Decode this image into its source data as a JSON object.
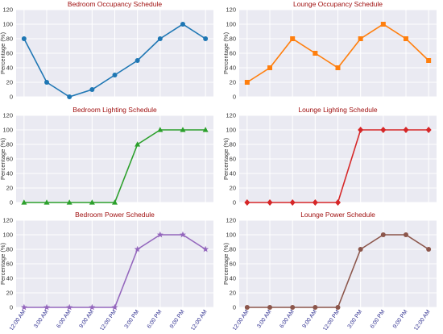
{
  "chart_data": [
    {
      "type": "line",
      "title": "Bedroom Occupancy Schedule",
      "xlabel": "",
      "ylabel": "Percentage (%)",
      "ylim": [
        0,
        120
      ],
      "yticks": [
        0,
        20,
        40,
        60,
        80,
        100,
        120
      ],
      "categories": [
        "12:00 AM",
        "3:00 AM",
        "6:00 AM",
        "9:00 AM",
        "12:00 PM",
        "3:00 PM",
        "6:00 PM",
        "9:00 PM",
        "12:00 AM"
      ],
      "show_x_tick_labels": false,
      "grid": true,
      "marker": "circle",
      "color": "#1f77b4",
      "values": [
        80,
        20,
        0,
        10,
        30,
        50,
        80,
        100,
        80
      ]
    },
    {
      "type": "line",
      "title": "Lounge Occupancy Schedule",
      "xlabel": "",
      "ylabel": "Percentage (%)",
      "ylim": [
        0,
        120
      ],
      "yticks": [
        0,
        20,
        40,
        60,
        80,
        100,
        120
      ],
      "categories": [
        "12:00 AM",
        "3:00 AM",
        "6:00 AM",
        "9:00 AM",
        "12:00 PM",
        "3:00 PM",
        "6:00 PM",
        "9:00 PM",
        "12:00 AM"
      ],
      "show_x_tick_labels": false,
      "grid": true,
      "marker": "square",
      "color": "#ff7f0e",
      "values": [
        20,
        40,
        80,
        60,
        40,
        80,
        100,
        80,
        50
      ]
    },
    {
      "type": "line",
      "title": "Bedroom Lighting Schedule",
      "xlabel": "",
      "ylabel": "Percentage (%)",
      "ylim": [
        0,
        120
      ],
      "yticks": [
        0,
        20,
        40,
        60,
        80,
        100,
        120
      ],
      "categories": [
        "12:00 AM",
        "3:00 AM",
        "6:00 AM",
        "9:00 AM",
        "12:00 PM",
        "3:00 PM",
        "6:00 PM",
        "9:00 PM",
        "12:00 AM"
      ],
      "show_x_tick_labels": false,
      "grid": true,
      "marker": "triangle",
      "color": "#2ca02c",
      "values": [
        0,
        0,
        0,
        0,
        0,
        80,
        100,
        100,
        100
      ]
    },
    {
      "type": "line",
      "title": "Lounge Lighting Schedule",
      "xlabel": "",
      "ylabel": "Percentage (%)",
      "ylim": [
        0,
        120
      ],
      "yticks": [
        0,
        20,
        40,
        60,
        80,
        100,
        120
      ],
      "categories": [
        "12:00 AM",
        "3:00 AM",
        "6:00 AM",
        "9:00 AM",
        "12:00 PM",
        "3:00 PM",
        "6:00 PM",
        "9:00 PM",
        "12:00 AM"
      ],
      "show_x_tick_labels": false,
      "grid": true,
      "marker": "diamond",
      "color": "#d62728",
      "values": [
        0,
        0,
        0,
        0,
        0,
        100,
        100,
        100,
        100
      ]
    },
    {
      "type": "line",
      "title": "Bedroom Power Schedule",
      "xlabel": "",
      "ylabel": "Percentage (%)",
      "ylim": [
        0,
        120
      ],
      "yticks": [
        0,
        20,
        40,
        60,
        80,
        100,
        120
      ],
      "categories": [
        "12:00 AM",
        "3:00 AM",
        "6:00 AM",
        "9:00 AM",
        "12:00 PM",
        "3:00 PM",
        "6:00 PM",
        "9:00 PM",
        "12:00 AM"
      ],
      "show_x_tick_labels": true,
      "grid": true,
      "marker": "star",
      "color": "#9467bd",
      "values": [
        0,
        0,
        0,
        0,
        0,
        80,
        100,
        100,
        80
      ]
    },
    {
      "type": "line",
      "title": "Lounge Power Schedule",
      "xlabel": "",
      "ylabel": "Percentage (%)",
      "ylim": [
        0,
        120
      ],
      "yticks": [
        0,
        20,
        40,
        60,
        80,
        100,
        120
      ],
      "categories": [
        "12:00 AM",
        "3:00 AM",
        "6:00 AM",
        "9:00 AM",
        "12:00 PM",
        "3:00 PM",
        "6:00 PM",
        "9:00 PM",
        "12:00 AM"
      ],
      "show_x_tick_labels": true,
      "grid": true,
      "marker": "circle",
      "color": "#8c564b",
      "values": [
        0,
        0,
        0,
        0,
        0,
        80,
        100,
        100,
        80
      ]
    }
  ],
  "style": {
    "title_color": "#a01010",
    "x_tick_color": "#2f2f8f",
    "y_tick_color": "#333333",
    "ylabel_color": "#333333",
    "panel_bg": "#eaeaf2",
    "grid_color": "#ffffff"
  }
}
